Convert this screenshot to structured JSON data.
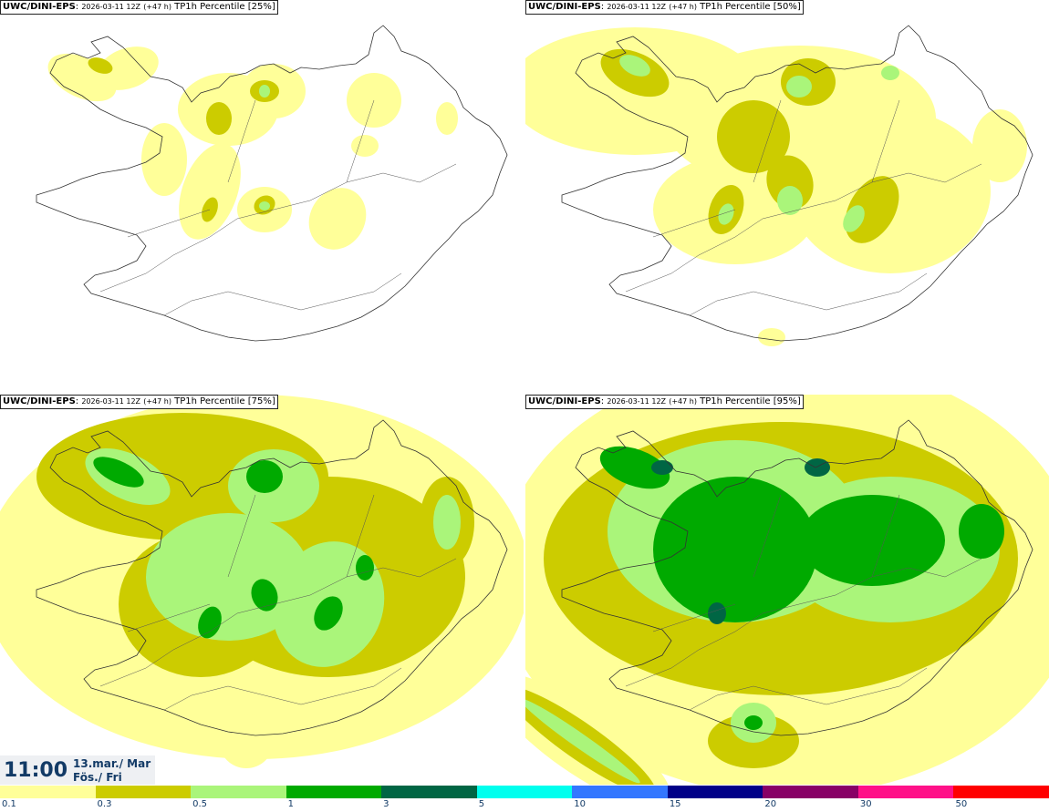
{
  "panels": [
    {
      "model": "UWC/DINI-EPS",
      "run": "2026-03-11 12Z",
      "lead": "(+47 h)",
      "field": "TP1h Percentile [25%]",
      "level": 0
    },
    {
      "model": "UWC/DINI-EPS",
      "run": "2026-03-11 12Z",
      "lead": "(+47 h)",
      "field": "TP1h Percentile [50%]",
      "level": 1
    },
    {
      "model": "UWC/DINI-EPS",
      "run": "2026-03-11 12Z",
      "lead": "(+47 h)",
      "field": "TP1h Percentile [75%]",
      "level": 2
    },
    {
      "model": "UWC/DINI-EPS",
      "run": "2026-03-11 12Z",
      "lead": "(+47 h)",
      "field": "TP1h Percentile [95%]",
      "level": 3
    }
  ],
  "valid": {
    "time": "11:00",
    "date_line1": "13.mar./ Mar",
    "date_line2": "Fös./ Fri"
  },
  "colorbar": {
    "colors": [
      "#ffff99",
      "#cccc00",
      "#aaf57a",
      "#00aa00",
      "#006644",
      "#00ffee",
      "#3377ff",
      "#000088",
      "#880066",
      "#ff1188",
      "#ff0000"
    ],
    "labels": [
      "0.1",
      "0.3",
      "0.5",
      "1",
      "3",
      "5",
      "10",
      "15",
      "20",
      "30",
      "50"
    ]
  }
}
